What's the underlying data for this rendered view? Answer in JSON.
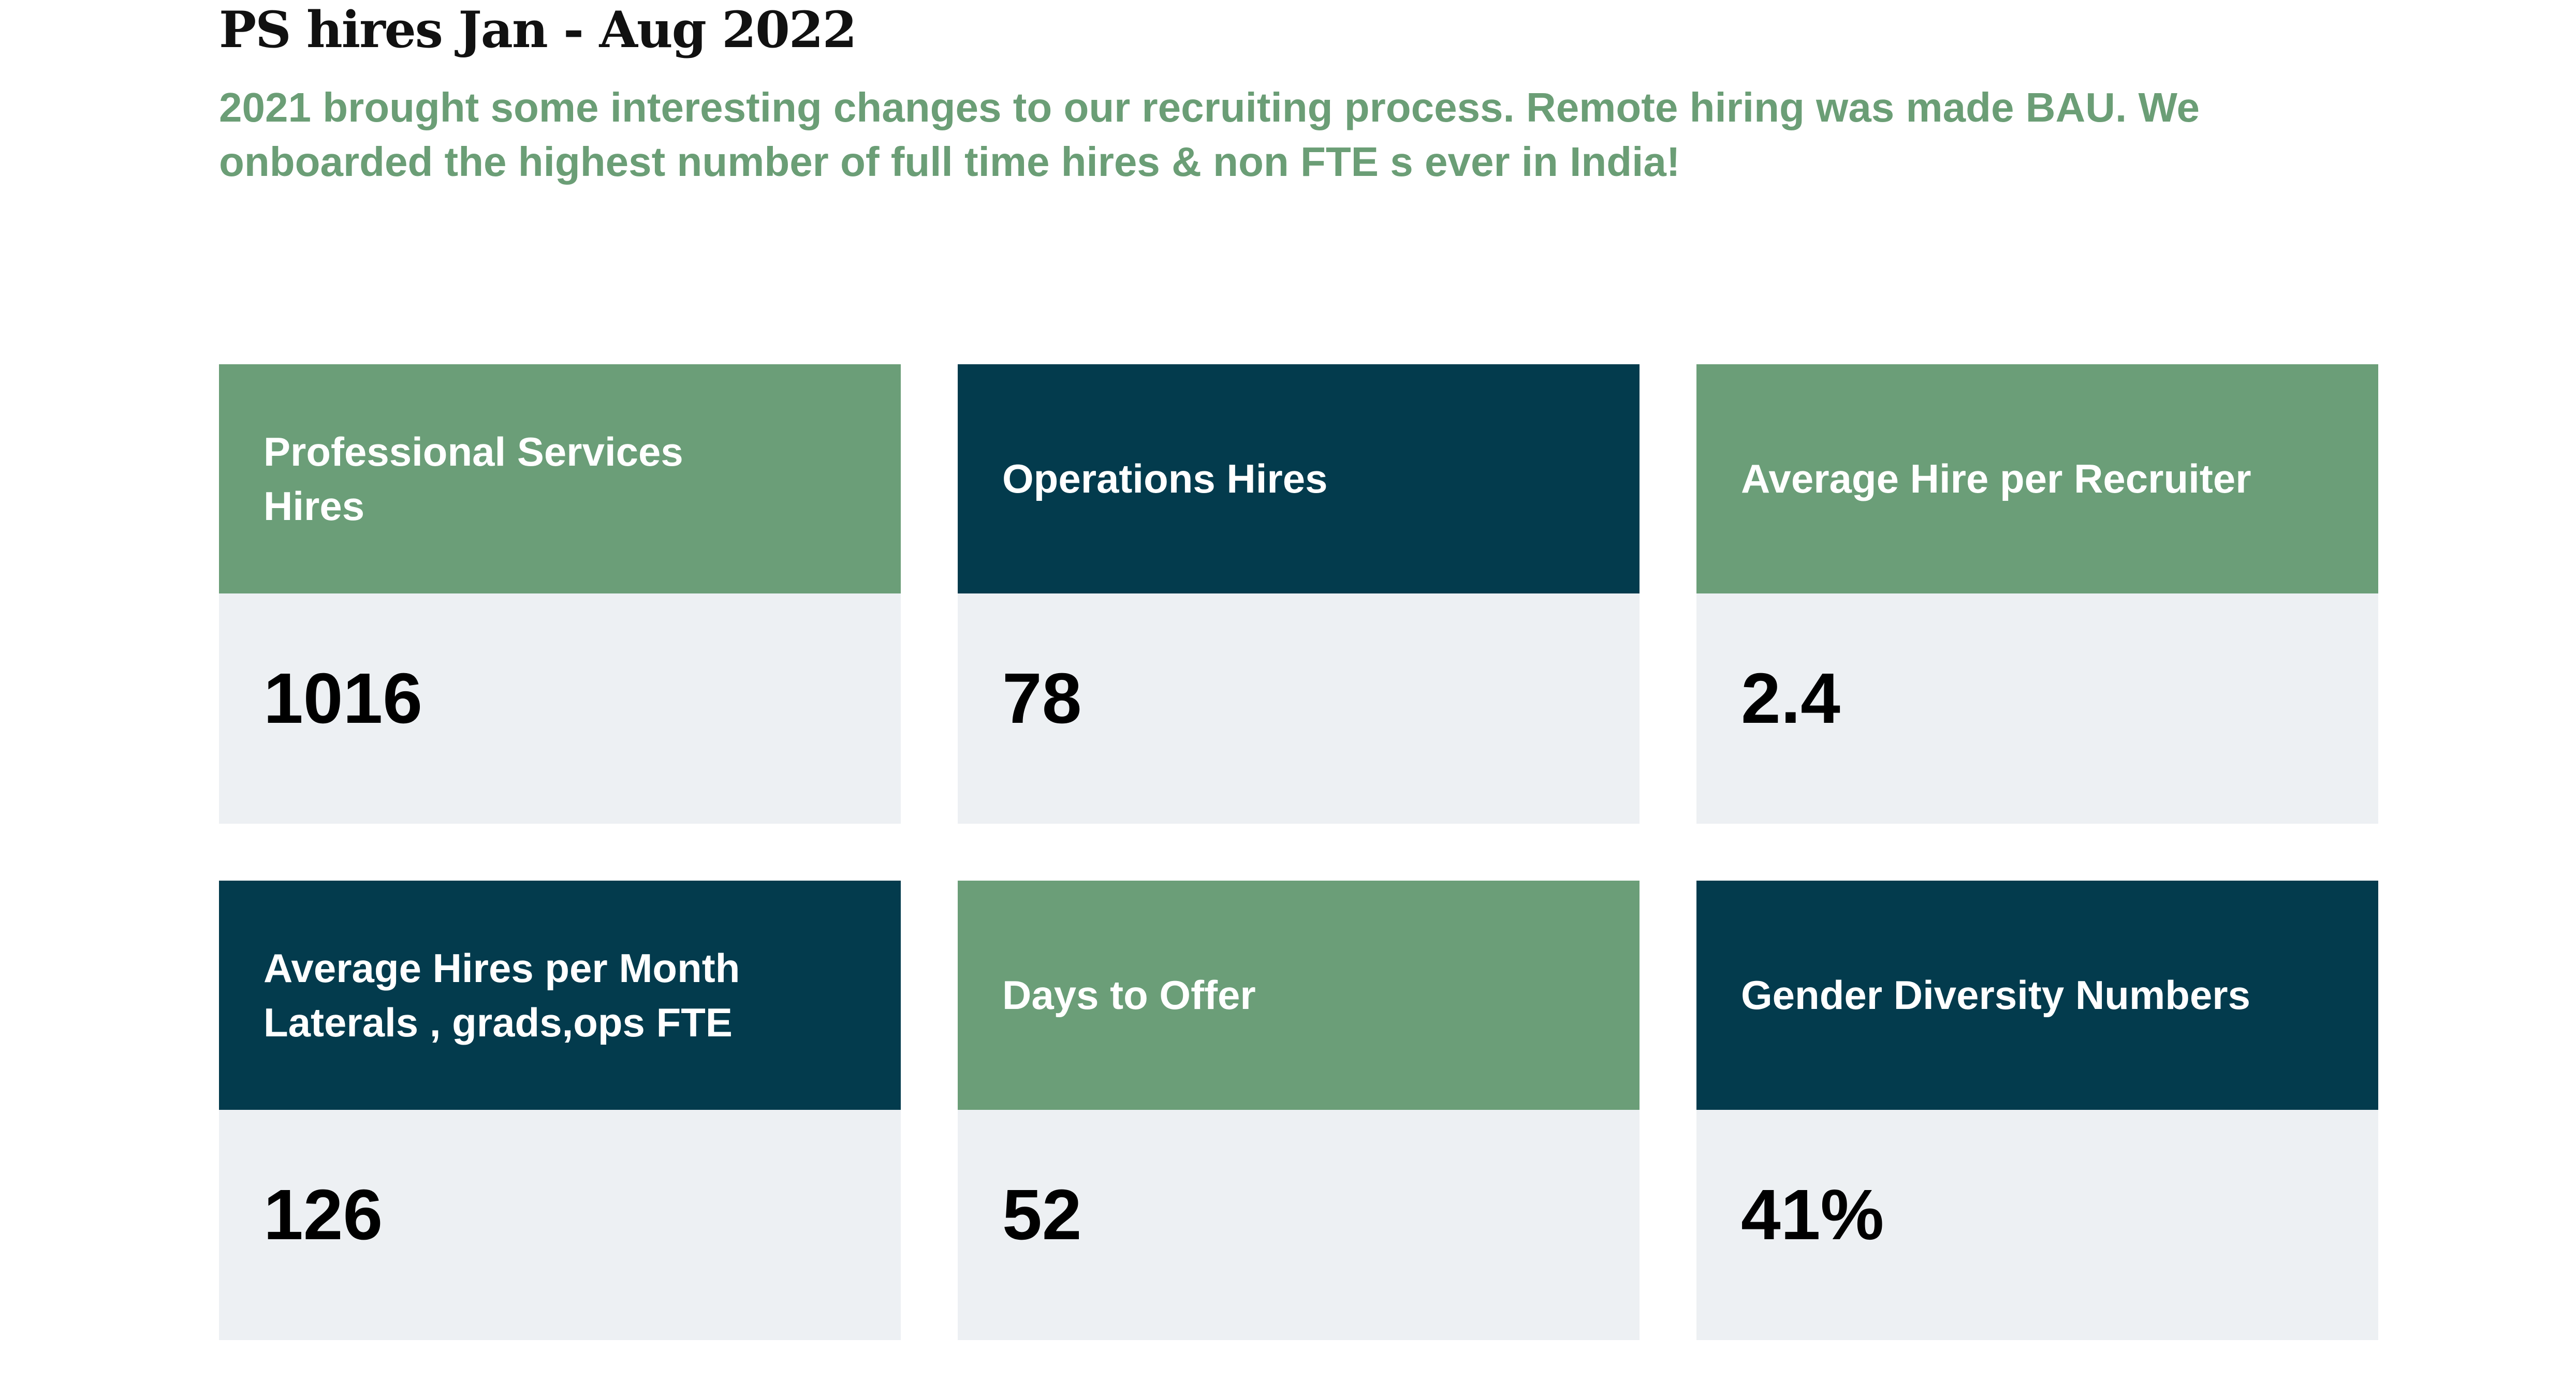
{
  "header": {
    "title": "PS hires Jan - Aug 2022",
    "subtitle": "2021 brought some interesting changes to our recruiting process. Remote hiring was made BAU. We onboarded the highest number of full time hires & non FTE s ever in India!"
  },
  "colors": {
    "green": "#6b9e78",
    "navy": "#033b4d",
    "value_bg": "#edf0f3",
    "subtitle": "#6b9e76"
  },
  "cards": [
    {
      "label": "Professional Services\nHires",
      "value": "1016"
    },
    {
      "label": "Operations Hires",
      "value": "78"
    },
    {
      "label": "Average Hire per Recruiter",
      "value": "2.4"
    },
    {
      "label": "Average Hires per Month\nLaterals , grads,ops FTE",
      "value": "126"
    },
    {
      "label": "Days to Offer",
      "value": "52"
    },
    {
      "label": "Gender Diversity Numbers",
      "value": "41%"
    }
  ]
}
